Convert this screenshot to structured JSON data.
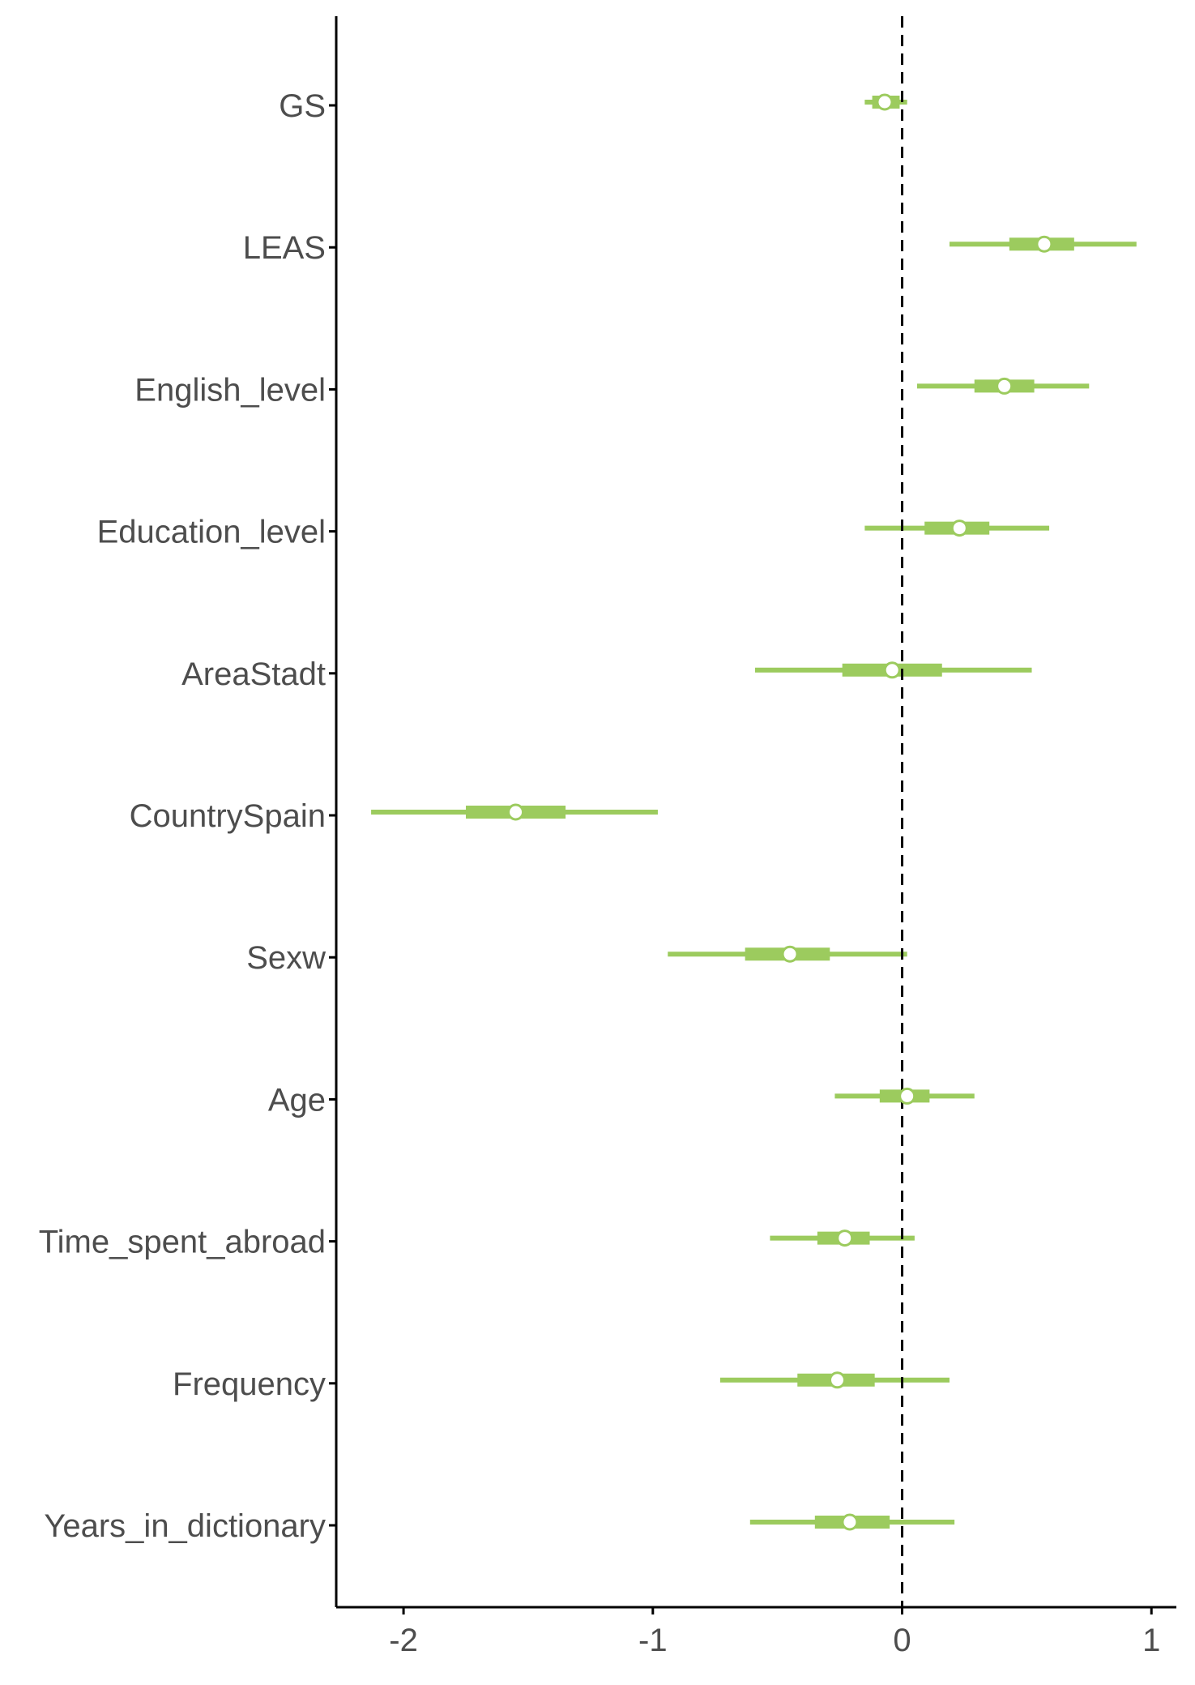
{
  "chart_data": {
    "type": "interval",
    "title": "",
    "xlabel": "",
    "ylabel": "",
    "xlim": [
      -2.27,
      1.1
    ],
    "x_ticks": [
      -2,
      -1,
      0,
      1
    ],
    "x_tick_labels": [
      "-2",
      "-1",
      "0",
      "1"
    ],
    "reference_line": {
      "x": 0,
      "style": "dashed"
    },
    "grid": false,
    "legend": "none",
    "color": "#9ccb5e",
    "point_fill": "#ffffff",
    "categories": [
      "GS",
      "LEAS",
      "English_level",
      "Education_level",
      "AreaStadt",
      "CountrySpain",
      "Sexw",
      "Age",
      "Time_spent_abroad",
      "Frequency",
      "Years_in_dictionary"
    ],
    "estimates": [
      {
        "label": "GS",
        "point": -0.07,
        "inner": [
          -0.12,
          -0.01
        ],
        "outer": [
          -0.15,
          0.02
        ]
      },
      {
        "label": "LEAS",
        "point": 0.57,
        "inner": [
          0.43,
          0.69
        ],
        "outer": [
          0.19,
          0.94
        ]
      },
      {
        "label": "English_level",
        "point": 0.41,
        "inner": [
          0.29,
          0.53
        ],
        "outer": [
          0.06,
          0.75
        ]
      },
      {
        "label": "Education_level",
        "point": 0.23,
        "inner": [
          0.09,
          0.35
        ],
        "outer": [
          -0.15,
          0.59
        ]
      },
      {
        "label": "AreaStadt",
        "point": -0.04,
        "inner": [
          -0.24,
          0.16
        ],
        "outer": [
          -0.59,
          0.52
        ]
      },
      {
        "label": "CountrySpain",
        "point": -1.55,
        "inner": [
          -1.75,
          -1.35
        ],
        "outer": [
          -2.13,
          -0.98
        ]
      },
      {
        "label": "Sexw",
        "point": -0.45,
        "inner": [
          -0.63,
          -0.29
        ],
        "outer": [
          -0.94,
          0.02
        ]
      },
      {
        "label": "Age",
        "point": 0.02,
        "inner": [
          -0.09,
          0.11
        ],
        "outer": [
          -0.27,
          0.29
        ]
      },
      {
        "label": "Time_spent_abroad",
        "point": -0.23,
        "inner": [
          -0.34,
          -0.13
        ],
        "outer": [
          -0.53,
          0.05
        ]
      },
      {
        "label": "Frequency",
        "point": -0.26,
        "inner": [
          -0.42,
          -0.11
        ],
        "outer": [
          -0.73,
          0.19
        ]
      },
      {
        "label": "Years_in_dictionary",
        "point": -0.21,
        "inner": [
          -0.35,
          -0.05
        ],
        "outer": [
          -0.61,
          0.21
        ]
      }
    ]
  }
}
